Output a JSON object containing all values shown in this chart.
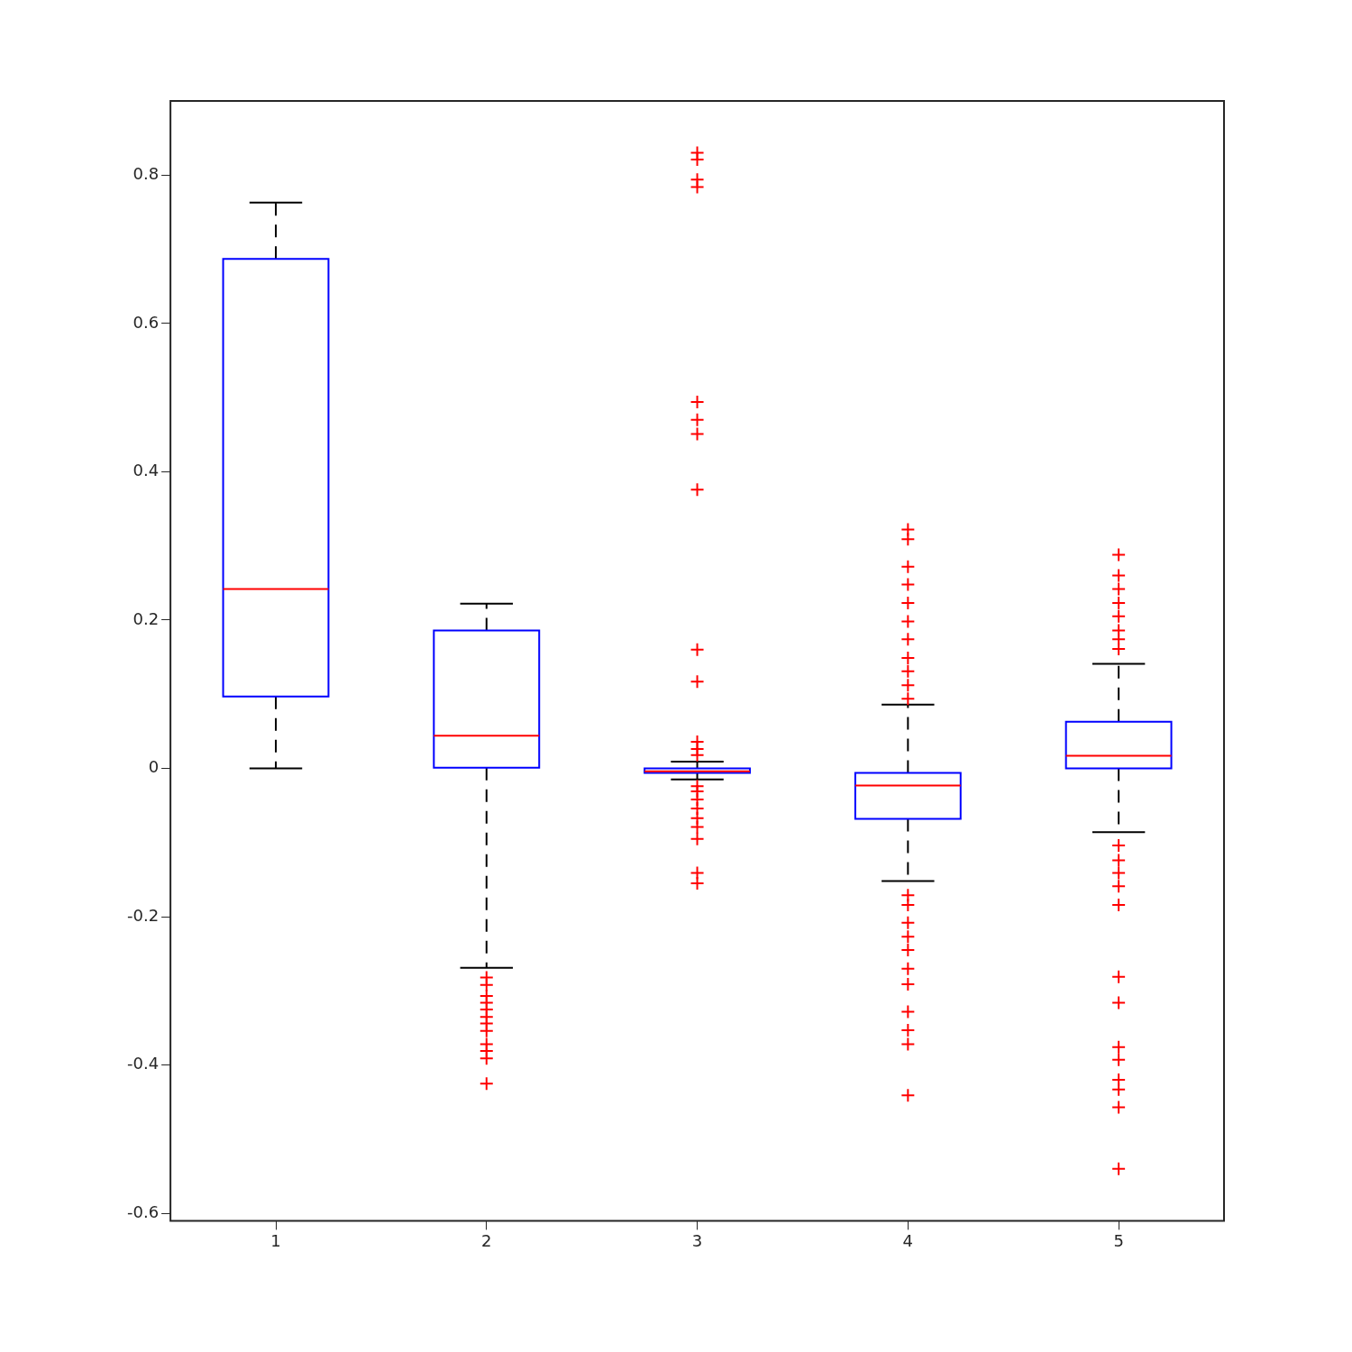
{
  "chart_data": {
    "type": "box",
    "categories": [
      "1",
      "2",
      "3",
      "4",
      "5"
    ],
    "ylim": [
      -0.61,
      0.9
    ],
    "yticks": [
      -0.6,
      -0.4,
      -0.2,
      0,
      0.2,
      0.4,
      0.6,
      0.8
    ],
    "grid": false,
    "legend": false,
    "marker": "cross",
    "series": [
      {
        "color": "#0000ff",
        "boxes": [
          {
            "low": 0,
            "q1": 0.097,
            "median": 0.242,
            "q3": 0.687,
            "high": 0.763
          },
          {
            "low": -0.269,
            "q1": 0.001,
            "median": 0.044,
            "q3": 0.186,
            "high": 0.222,
            "outliers": [
              -0.282,
              -0.292,
              -0.307,
              -0.316,
              -0.325,
              -0.335,
              -0.344,
              -0.354,
              -0.372,
              -0.381,
              -0.391,
              -0.425
            ]
          },
          {
            "low": -0.015,
            "q1": -0.006,
            "median": -0.004,
            "q3": 0,
            "high": 0.009,
            "outliers": [
              0.83,
              0.821,
              0.794,
              0.784,
              0.494,
              0.47,
              0.451,
              0.376,
              0.16,
              0.117,
              0.036,
              0.026,
              0.018,
              -0.024,
              -0.031,
              -0.042,
              -0.054,
              -0.067,
              -0.079,
              -0.095,
              -0.141,
              -0.155
            ]
          },
          {
            "low": -0.152,
            "q1": -0.068,
            "median": -0.023,
            "q3": -0.006,
            "high": 0.086,
            "outliers": [
              0.322,
              0.309,
              0.272,
              0.248,
              0.223,
              0.198,
              0.174,
              0.149,
              0.131,
              0.112,
              0.094,
              -0.171,
              -0.184,
              -0.208,
              -0.227,
              -0.245,
              -0.27,
              -0.291,
              -0.328,
              -0.353,
              -0.372,
              -0.441
            ]
          },
          {
            "low": -0.086,
            "q1": 0,
            "median": 0.017,
            "q3": 0.063,
            "high": 0.141,
            "outliers": [
              0.288,
              0.26,
              0.242,
              0.223,
              0.205,
              0.186,
              0.174,
              0.161,
              -0.104,
              -0.124,
              -0.141,
              -0.159,
              -0.184,
              -0.281,
              -0.316,
              -0.376,
              -0.393,
              -0.42,
              -0.433,
              -0.457,
              -0.54
            ]
          }
        ]
      }
    ]
  }
}
